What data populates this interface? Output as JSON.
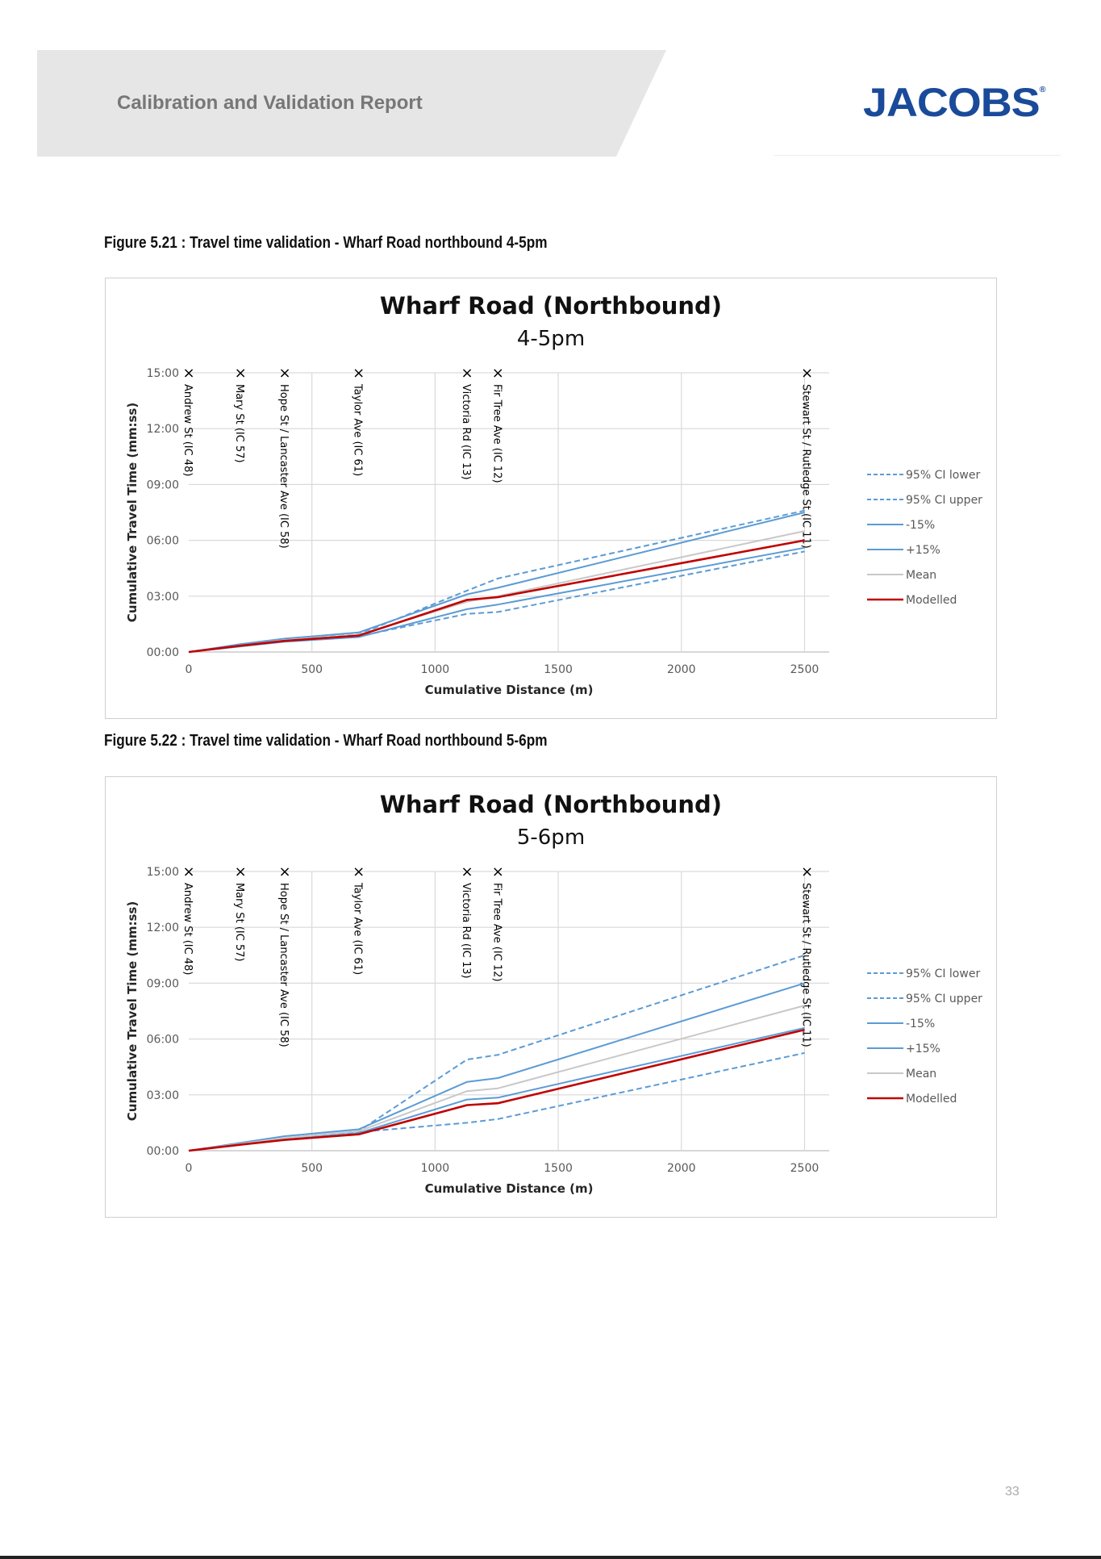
{
  "header": {
    "title": "Calibration and Validation Report",
    "logo_text": "JACOBS",
    "logo_mark": "®"
  },
  "page_number": "33",
  "figures": [
    {
      "caption": "Figure 5.21 : Travel time validation - Wharf Road northbound 4-5pm"
    },
    {
      "caption": "Figure 5.22 : Travel time validation - Wharf Road northbound 5-6pm"
    }
  ],
  "colors": {
    "ci": "#5b9bd5",
    "band": "#5b9bd5",
    "mean": "#c8c8c8",
    "modelled": "#c00000",
    "grid": "#d9d9d9",
    "logo": "#1a4a9a"
  },
  "chart_data": [
    {
      "type": "line",
      "title": "Wharf Road (Northbound)",
      "subtitle": "4-5pm",
      "xlabel": "Cumulative Distance (m)",
      "ylabel": "Cumulative Travel Time (mm:ss)",
      "xlim": [
        0,
        2600
      ],
      "ylim": [
        0,
        15
      ],
      "xticks": [
        0,
        500,
        1000,
        1500,
        2000,
        2500
      ],
      "yticks": [
        "00:00",
        "03:00",
        "06:00",
        "09:00",
        "12:00",
        "15:00"
      ],
      "grid": true,
      "legend_position": "right",
      "intersections": [
        {
          "x": 0,
          "label": "Andrew St (IC 48)"
        },
        {
          "x": 210,
          "label": "Mary St (IC 57)"
        },
        {
          "x": 390,
          "label": "Hope St / Lancaster Ave (IC 58)"
        },
        {
          "x": 690,
          "label": "Taylor Ave (IC 61)"
        },
        {
          "x": 1130,
          "label": "Victoria Rd (IC 13)"
        },
        {
          "x": 1255,
          "label": "Fir Tree Ave (IC 12)"
        },
        {
          "x": 2510,
          "label": "Stewart St / Rutledge St (IC 11)"
        }
      ],
      "x": [
        0,
        210,
        390,
        690,
        1130,
        1255,
        2500
      ],
      "series": [
        {
          "name": "95% CI lower",
          "style": "dashed",
          "values": [
            0,
            0.33,
            0.6,
            0.85,
            2.05,
            2.15,
            5.4
          ]
        },
        {
          "name": "95% CI upper",
          "style": "dashed",
          "values": [
            0,
            0.37,
            0.65,
            0.95,
            3.3,
            3.95,
            7.6
          ]
        },
        {
          "name": "-15%",
          "style": "solid",
          "values": [
            0,
            0.3,
            0.55,
            0.8,
            2.3,
            2.55,
            5.6
          ]
        },
        {
          "name": "+15%",
          "style": "solid",
          "values": [
            0,
            0.42,
            0.72,
            1.05,
            3.1,
            3.45,
            7.5
          ]
        },
        {
          "name": "Mean",
          "style": "solid",
          "values": [
            0,
            0.36,
            0.64,
            0.93,
            2.7,
            3.0,
            6.5
          ]
        },
        {
          "name": "Modelled",
          "style": "solid",
          "values": [
            0,
            0.34,
            0.6,
            0.88,
            2.8,
            2.95,
            6.0
          ]
        }
      ]
    },
    {
      "type": "line",
      "title": "Wharf Road (Northbound)",
      "subtitle": "5-6pm",
      "xlabel": "Cumulative Distance (m)",
      "ylabel": "Cumulative Travel Time (mm:ss)",
      "xlim": [
        0,
        2600
      ],
      "ylim": [
        0,
        15
      ],
      "xticks": [
        0,
        500,
        1000,
        1500,
        2000,
        2500
      ],
      "yticks": [
        "00:00",
        "03:00",
        "06:00",
        "09:00",
        "12:00",
        "15:00"
      ],
      "grid": true,
      "legend_position": "right",
      "intersections": [
        {
          "x": 0,
          "label": "Andrew St (IC 48)"
        },
        {
          "x": 210,
          "label": "Mary St (IC 57)"
        },
        {
          "x": 390,
          "label": "Hope St / Lancaster Ave (IC 58)"
        },
        {
          "x": 690,
          "label": "Taylor Ave (IC 61)"
        },
        {
          "x": 1130,
          "label": "Victoria Rd (IC 13)"
        },
        {
          "x": 1255,
          "label": "Fir Tree Ave (IC 12)"
        },
        {
          "x": 2510,
          "label": "Stewart St / Rutledge St (IC 11)"
        }
      ],
      "x": [
        0,
        210,
        390,
        690,
        1130,
        1255,
        2500
      ],
      "series": [
        {
          "name": "95% CI lower",
          "style": "dashed",
          "values": [
            0,
            0.33,
            0.6,
            1.0,
            1.5,
            1.7,
            5.25
          ]
        },
        {
          "name": "95% CI upper",
          "style": "dashed",
          "values": [
            0,
            0.37,
            0.68,
            1.05,
            4.9,
            5.15,
            10.5
          ]
        },
        {
          "name": "-15%",
          "style": "solid",
          "values": [
            0,
            0.32,
            0.6,
            0.95,
            2.75,
            2.85,
            6.6
          ]
        },
        {
          "name": "+15%",
          "style": "solid",
          "values": [
            0,
            0.42,
            0.78,
            1.15,
            3.7,
            3.9,
            9.0
          ]
        },
        {
          "name": "Mean",
          "style": "solid",
          "values": [
            0,
            0.37,
            0.68,
            1.05,
            3.2,
            3.35,
            7.8
          ]
        },
        {
          "name": "Modelled",
          "style": "solid",
          "values": [
            0,
            0.32,
            0.58,
            0.88,
            2.45,
            2.55,
            6.5
          ]
        }
      ]
    }
  ]
}
